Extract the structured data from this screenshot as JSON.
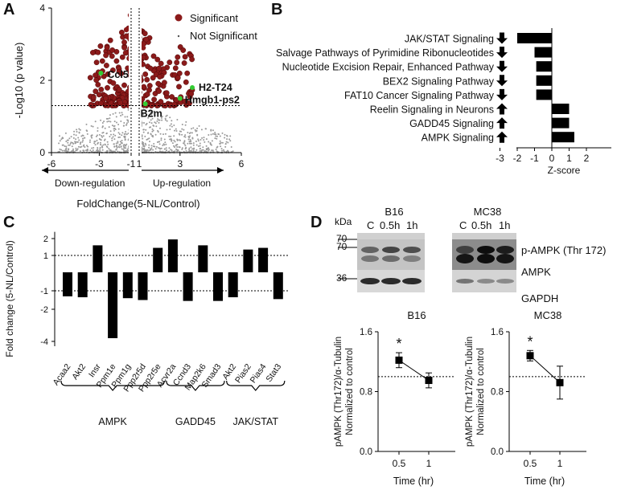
{
  "colors": {
    "significant": "#8b1a1a",
    "not_significant": "#9a9a9a",
    "highlight": "#33cc33",
    "bar": "#000000",
    "axis": "#000000"
  },
  "panels": {
    "A": {
      "letter": "A"
    },
    "B": {
      "letter": "B"
    },
    "C": {
      "letter": "C"
    },
    "D": {
      "letter": "D"
    }
  },
  "chart_data": [
    {
      "id": "A",
      "type": "scatter",
      "title": "",
      "xlabel": "FoldChange(5-NL/Control)",
      "ylabel": "-Log10 (p value)",
      "xlim": [
        -6,
        6
      ],
      "ylim": [
        0,
        4
      ],
      "xtick_labels": [
        "-6",
        "-3",
        "-1",
        "1",
        "3",
        "6"
      ],
      "xtick_values": [
        -6,
        -3,
        -1,
        1,
        3,
        6
      ],
      "ytick_labels": [
        "0",
        "2",
        "4"
      ],
      "ytick_values": [
        0,
        2,
        4
      ],
      "legend": [
        "Significant",
        "Not Significant"
      ],
      "threshold_y": 1.3,
      "threshold_x": [
        -1,
        1
      ],
      "direction_labels": {
        "down": "Down-regulation",
        "up": "Up-regulation"
      },
      "highlighted_genes": [
        {
          "label": "Ccl5",
          "x": -2.9,
          "y": 2.2
        },
        {
          "label": "H2-T24",
          "x": 3.6,
          "y": 1.8
        },
        {
          "label": "Hmgb1-ps2",
          "x": 3.0,
          "y": 1.5
        },
        {
          "label": "B2m",
          "x": 1.3,
          "y": 1.35
        }
      ]
    },
    {
      "id": "B",
      "type": "bar",
      "orientation": "horizontal",
      "xlabel": "Z-score",
      "xlim": [
        -3,
        2
      ],
      "xtick_labels": [
        "-3",
        "-2",
        "-1",
        "0",
        "1",
        "2"
      ],
      "categories": [
        "JAK/STAT Signaling",
        "Salvage Pathways of Pyrimidine Ribonucleotides",
        "Nucleotide Excision Repair, Enhanced Pathway",
        "BEX2 Signaling Pathway",
        "FAT10 Cancer Signaling Pathway",
        "Reelin Signaling in Neurons",
        "GADD45 Signaling",
        "AMPK Signaling"
      ],
      "directions": [
        "down",
        "down",
        "down",
        "down",
        "down",
        "up",
        "up",
        "up"
      ],
      "values": [
        -2.0,
        -1.0,
        -0.9,
        -0.9,
        -0.9,
        1.0,
        1.0,
        1.3
      ]
    },
    {
      "id": "C",
      "type": "bar",
      "ylabel": "Fold change (5-NL/Control)",
      "ytick_labels": [
        "2",
        "1",
        "-1",
        "-2",
        "-4"
      ],
      "categories": [
        "Acaa2",
        "Akt2",
        "Insr",
        "Ppm1e",
        "Ppm1g",
        "Ppp2r5d",
        "Ppp2r5e",
        "Acvr2a",
        "Ccnd3",
        "Map2k6",
        "Smad3",
        "Akt2",
        "Pias2",
        "Pias4",
        "Stat3"
      ],
      "values": [
        -1.3,
        -1.35,
        1.6,
        -3.8,
        -1.4,
        -1.5,
        1.45,
        1.95,
        -1.55,
        1.6,
        -1.55,
        -1.35,
        1.35,
        1.45,
        -1.45
      ],
      "groups": [
        {
          "label": "AMPK",
          "start": 0,
          "end": 6
        },
        {
          "label": "GADD45",
          "start": 7,
          "end": 10
        },
        {
          "label": "JAK/STAT",
          "start": 11,
          "end": 14
        }
      ],
      "reference_lines": [
        1,
        -1
      ]
    },
    {
      "id": "D1",
      "type": "line",
      "title": "B16",
      "xlabel": "Time (hr)",
      "ylabel_lines": [
        "pAMPK (Thr172)/α-Tubulin",
        "Normalized to control"
      ],
      "x_labels": [
        "0.5",
        "1"
      ],
      "values": [
        1.22,
        0.95
      ],
      "errors": [
        0.1,
        0.1
      ],
      "ylim": [
        0.0,
        1.6
      ],
      "ytick_labels": [
        "0.0",
        "0.8",
        "1.6"
      ],
      "reference": 1.0,
      "annotation": "*"
    },
    {
      "id": "D2",
      "type": "line",
      "title": "MC38",
      "xlabel": "Time (hr)",
      "ylabel_lines": [
        "pAMPK (Thr172)/α-Tubulin",
        "Normalized to control"
      ],
      "x_labels": [
        "0.5",
        "1"
      ],
      "values": [
        1.28,
        0.92
      ],
      "errors": [
        0.07,
        0.22
      ],
      "ylim": [
        0.0,
        1.6
      ],
      "ytick_labels": [
        "0.0",
        "0.8",
        "1.6"
      ],
      "reference": 1.0,
      "annotation": "*"
    }
  ],
  "blot": {
    "kda_label": "kDa",
    "cell_lines": [
      "B16",
      "MC38"
    ],
    "lane_labels": [
      "C",
      "0.5h",
      "1h"
    ],
    "rows": [
      {
        "marker": "70",
        "label": "p-AMPK (Thr 172)"
      },
      {
        "marker": "70",
        "label": "AMPK"
      },
      {
        "marker": "36",
        "label": "GAPDH"
      }
    ]
  }
}
